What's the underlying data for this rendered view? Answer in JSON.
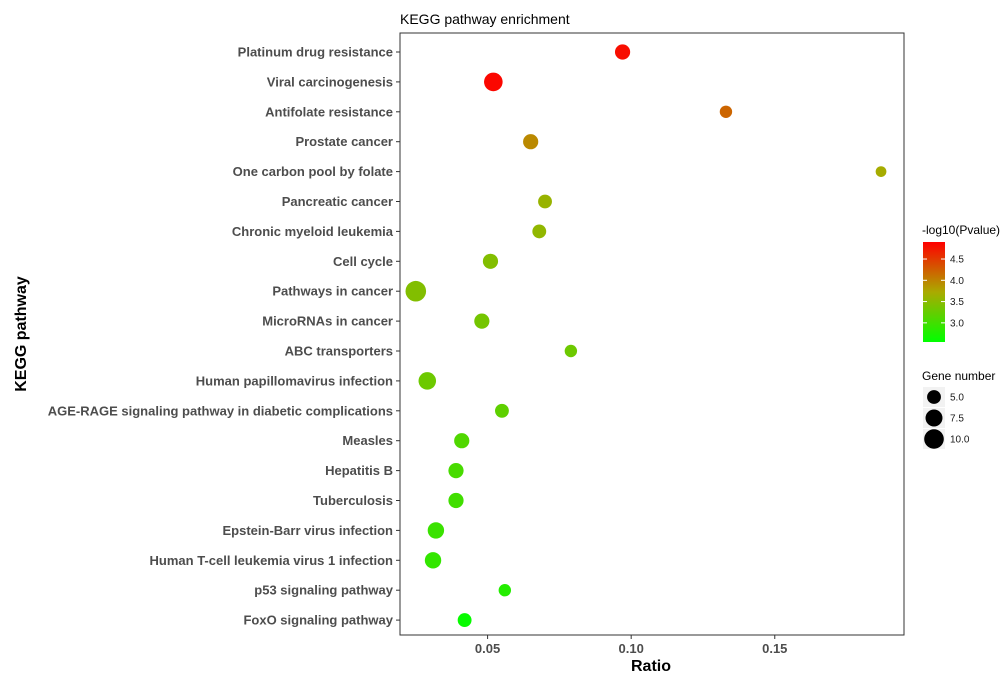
{
  "chart_data": {
    "type": "scatter",
    "title": "KEGG pathway enrichment",
    "xlabel": "Ratio",
    "ylabel": "KEGG pathway",
    "xlim": [
      0.0195,
      0.195
    ],
    "x_ticks": [
      0.05,
      0.1,
      0.15
    ],
    "x_tick_labels": [
      "0.05",
      "0.10",
      "0.15"
    ],
    "grid": false,
    "legend_position": "right",
    "color_legend": {
      "title": "-log10(Pvalue)",
      "low_color": "#00ff00",
      "high_color": "#ff0000",
      "range": [
        2.55,
        4.9
      ],
      "ticks": [
        3.0,
        3.5,
        4.0,
        4.5
      ],
      "tick_labels": [
        "3.0",
        "3.5",
        "4.0",
        "4.5"
      ]
    },
    "size_legend": {
      "title": "Gene number",
      "values": [
        5.0,
        7.5,
        10.0
      ],
      "labels": [
        "5.0",
        "7.5",
        "10.0"
      ]
    },
    "categories": [
      "Platinum drug resistance",
      "Viral carcinogenesis",
      "Antifolate resistance",
      "Prostate cancer",
      "One carbon pool by folate",
      "Pancreatic cancer",
      "Chronic myeloid leukemia",
      "Cell cycle",
      "Pathways in cancer",
      "MicroRNAs in cancer",
      "ABC transporters",
      "Human papillomavirus infection",
      "AGE-RAGE signaling pathway in diabetic complications",
      "Measles",
      "Hepatitis B",
      "Tuberculosis",
      "Epstein-Barr virus infection",
      "Human T-cell leukemia virus 1 infection",
      "p53 signaling pathway",
      "FoxO signaling pathway"
    ],
    "points": [
      {
        "pathway": "Platinum drug resistance",
        "ratio": 0.097,
        "neg_log10_p": 4.8,
        "gene_number": 6
      },
      {
        "pathway": "Viral carcinogenesis",
        "ratio": 0.052,
        "neg_log10_p": 4.85,
        "gene_number": 9
      },
      {
        "pathway": "Antifolate resistance",
        "ratio": 0.133,
        "neg_log10_p": 4.2,
        "gene_number": 4
      },
      {
        "pathway": "Prostate cancer",
        "ratio": 0.065,
        "neg_log10_p": 3.95,
        "gene_number": 6
      },
      {
        "pathway": "One carbon pool by folate",
        "ratio": 0.187,
        "neg_log10_p": 3.7,
        "gene_number": 3
      },
      {
        "pathway": "Pancreatic cancer",
        "ratio": 0.07,
        "neg_log10_p": 3.6,
        "gene_number": 5
      },
      {
        "pathway": "Chronic myeloid leukemia",
        "ratio": 0.068,
        "neg_log10_p": 3.55,
        "gene_number": 5
      },
      {
        "pathway": "Cell cycle",
        "ratio": 0.051,
        "neg_log10_p": 3.45,
        "gene_number": 6
      },
      {
        "pathway": "Pathways in cancer",
        "ratio": 0.025,
        "neg_log10_p": 3.45,
        "gene_number": 11
      },
      {
        "pathway": "MicroRNAs in cancer",
        "ratio": 0.048,
        "neg_log10_p": 3.35,
        "gene_number": 6
      },
      {
        "pathway": "ABC transporters",
        "ratio": 0.079,
        "neg_log10_p": 3.3,
        "gene_number": 4
      },
      {
        "pathway": "Human papillomavirus infection",
        "ratio": 0.029,
        "neg_log10_p": 3.3,
        "gene_number": 8
      },
      {
        "pathway": "AGE-RAGE signaling pathway in diabetic complications",
        "ratio": 0.055,
        "neg_log10_p": 3.2,
        "gene_number": 5
      },
      {
        "pathway": "Measles",
        "ratio": 0.041,
        "neg_log10_p": 3.1,
        "gene_number": 6
      },
      {
        "pathway": "Hepatitis B",
        "ratio": 0.039,
        "neg_log10_p": 3.05,
        "gene_number": 6
      },
      {
        "pathway": "Tuberculosis",
        "ratio": 0.039,
        "neg_log10_p": 3.0,
        "gene_number": 6
      },
      {
        "pathway": "Epstein-Barr virus infection",
        "ratio": 0.032,
        "neg_log10_p": 2.95,
        "gene_number": 7
      },
      {
        "pathway": "Human T-cell leukemia virus 1 infection",
        "ratio": 0.031,
        "neg_log10_p": 2.9,
        "gene_number": 7
      },
      {
        "pathway": "p53 signaling pathway",
        "ratio": 0.056,
        "neg_log10_p": 2.8,
        "gene_number": 4
      },
      {
        "pathway": "FoxO signaling pathway",
        "ratio": 0.042,
        "neg_log10_p": 2.6,
        "gene_number": 5
      }
    ]
  }
}
